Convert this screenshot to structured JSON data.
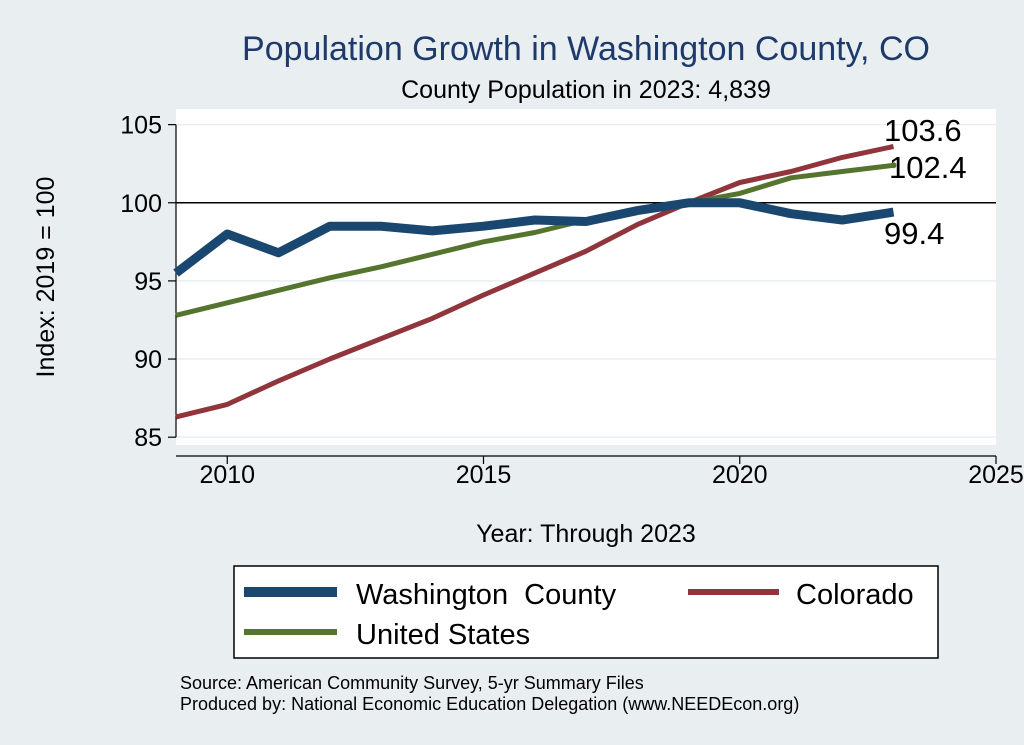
{
  "chart_data": {
    "type": "line",
    "title": "Population Growth in Washington County, CO",
    "subtitle": "County Population in 2023: 4,839",
    "xlabel": "Year: Through 2023",
    "ylabel": "Index: 2019 = 100",
    "xlim": [
      2009,
      2025
    ],
    "ylim": [
      84.5,
      106
    ],
    "x_ticks": [
      2010,
      2015,
      2020,
      2025
    ],
    "y_ticks": [
      85,
      90,
      95,
      100,
      105
    ],
    "reference_line": 100,
    "grid": true,
    "legend_position": "bottom",
    "x": [
      2009,
      2010,
      2011,
      2012,
      2013,
      2014,
      2015,
      2016,
      2017,
      2018,
      2019,
      2020,
      2021,
      2022,
      2023
    ],
    "series": [
      {
        "name": "Washington  County",
        "color": "#1a476f",
        "values": [
          95.5,
          98.0,
          96.8,
          98.5,
          98.5,
          98.2,
          98.5,
          98.9,
          98.8,
          99.5,
          100.0,
          100.0,
          99.3,
          98.9,
          99.4
        ],
        "end_label": "99.4"
      },
      {
        "name": "Colorado",
        "color": "#90353b",
        "values": [
          86.3,
          87.1,
          88.6,
          90.0,
          91.3,
          92.6,
          94.1,
          95.5,
          96.9,
          98.6,
          100.0,
          101.3,
          102.0,
          102.9,
          103.6
        ],
        "end_label": "103.6"
      },
      {
        "name": "United States",
        "color": "#55752f",
        "values": [
          92.8,
          93.6,
          94.4,
          95.2,
          95.9,
          96.7,
          97.5,
          98.1,
          98.9,
          99.6,
          100.0,
          100.6,
          101.6,
          102.0,
          102.4
        ],
        "end_label": "102.4"
      }
    ]
  },
  "source": {
    "line1": "Source: American Community Survey, 5-yr Summary Files",
    "line2": "Produced by: National Economic Education Delegation (www.NEEDEcon.org)"
  }
}
